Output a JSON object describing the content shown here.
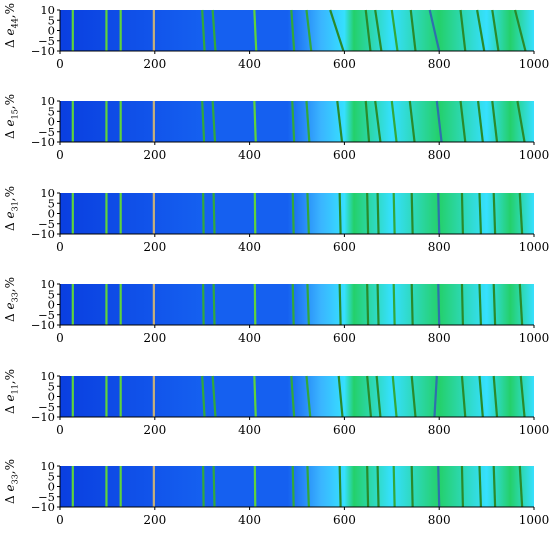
{
  "chart_data": [
    {
      "type": "heatmap",
      "ylabel_prefix": "Δ",
      "ylabel_symbol": "e",
      "ylabel_sub": "44",
      "ylabel_unit": ",%",
      "xlim": [
        0,
        1000
      ],
      "ylim": [
        -10,
        10
      ],
      "xticks": [
        "0",
        "200",
        "400",
        "600",
        "800",
        "1000"
      ],
      "yticks": [
        "10",
        "5",
        "0",
        "-5",
        "-10"
      ],
      "lines": [
        {
          "x_top": 27,
          "x_bottom": 27,
          "color": "#5fd33a"
        },
        {
          "x_top": 98,
          "x_bottom": 98,
          "color": "#5fd33a"
        },
        {
          "x_top": 128,
          "x_bottom": 128,
          "color": "#5fd33a"
        },
        {
          "x_top": 198,
          "x_bottom": 198,
          "color": "#c7b07a"
        },
        {
          "x_top": 300,
          "x_bottom": 305,
          "color": "#32a83a"
        },
        {
          "x_top": 322,
          "x_bottom": 328,
          "color": "#32a83a"
        },
        {
          "x_top": 410,
          "x_bottom": 414,
          "color": "#5fd33a"
        },
        {
          "x_top": 488,
          "x_bottom": 494,
          "color": "#32a83a"
        },
        {
          "x_top": 520,
          "x_bottom": 530,
          "color": "#32a83a"
        },
        {
          "x_top": 570,
          "x_bottom": 598,
          "color": "#2a8a2a"
        },
        {
          "x_top": 645,
          "x_bottom": 655,
          "color": "#2a8a2a"
        },
        {
          "x_top": 665,
          "x_bottom": 678,
          "color": "#2a8a2a"
        },
        {
          "x_top": 700,
          "x_bottom": 712,
          "color": "#32a83a"
        },
        {
          "x_top": 740,
          "x_bottom": 750,
          "color": "#2a8a2a"
        },
        {
          "x_top": 780,
          "x_bottom": 800,
          "color": "#2f6fae"
        },
        {
          "x_top": 845,
          "x_bottom": 855,
          "color": "#2a8a2a"
        },
        {
          "x_top": 880,
          "x_bottom": 895,
          "color": "#2a8a2a"
        },
        {
          "x_top": 912,
          "x_bottom": 925,
          "color": "#2a8a2a"
        },
        {
          "x_top": 960,
          "x_bottom": 982,
          "color": "#2a8a2a"
        }
      ]
    },
    {
      "type": "heatmap",
      "ylabel_prefix": "Δ",
      "ylabel_symbol": "e",
      "ylabel_sub": "15",
      "ylabel_unit": ",%",
      "xlim": [
        0,
        1000
      ],
      "ylim": [
        -10,
        10
      ],
      "xticks": [
        "0",
        "200",
        "400",
        "600",
        "800",
        "1000"
      ],
      "yticks": [
        "10",
        "5",
        "0",
        "-5",
        "-10"
      ],
      "lines": [
        {
          "x_top": 27,
          "x_bottom": 27,
          "color": "#5fd33a"
        },
        {
          "x_top": 98,
          "x_bottom": 98,
          "color": "#5fd33a"
        },
        {
          "x_top": 128,
          "x_bottom": 128,
          "color": "#5fd33a"
        },
        {
          "x_top": 198,
          "x_bottom": 198,
          "color": "#c7b07a"
        },
        {
          "x_top": 300,
          "x_bottom": 304,
          "color": "#32a83a"
        },
        {
          "x_top": 322,
          "x_bottom": 327,
          "color": "#32a83a"
        },
        {
          "x_top": 410,
          "x_bottom": 413,
          "color": "#5fd33a"
        },
        {
          "x_top": 490,
          "x_bottom": 494,
          "color": "#32a83a"
        },
        {
          "x_top": 520,
          "x_bottom": 526,
          "color": "#32a83a"
        },
        {
          "x_top": 585,
          "x_bottom": 595,
          "color": "#2a8a2a"
        },
        {
          "x_top": 645,
          "x_bottom": 652,
          "color": "#2a8a2a"
        },
        {
          "x_top": 665,
          "x_bottom": 676,
          "color": "#2a8a2a"
        },
        {
          "x_top": 700,
          "x_bottom": 710,
          "color": "#32a83a"
        },
        {
          "x_top": 738,
          "x_bottom": 748,
          "color": "#2a8a2a"
        },
        {
          "x_top": 795,
          "x_bottom": 805,
          "color": "#2f6fae"
        },
        {
          "x_top": 845,
          "x_bottom": 855,
          "color": "#2a8a2a"
        },
        {
          "x_top": 882,
          "x_bottom": 892,
          "color": "#2a8a2a"
        },
        {
          "x_top": 912,
          "x_bottom": 922,
          "color": "#2a8a2a"
        },
        {
          "x_top": 965,
          "x_bottom": 980,
          "color": "#2a8a2a"
        }
      ]
    },
    {
      "type": "heatmap",
      "ylabel_prefix": "Δ",
      "ylabel_symbol": "e",
      "ylabel_sub": "31",
      "ylabel_unit": ",%",
      "xlim": [
        0,
        1000
      ],
      "ylim": [
        -10,
        10
      ],
      "xticks": [
        "0",
        "200",
        "400",
        "600",
        "800",
        "1000"
      ],
      "yticks": [
        "10",
        "5",
        "0",
        "-5",
        "-10"
      ],
      "lines": [
        {
          "x_top": 27,
          "x_bottom": 27,
          "color": "#5fd33a"
        },
        {
          "x_top": 98,
          "x_bottom": 98,
          "color": "#5fd33a"
        },
        {
          "x_top": 128,
          "x_bottom": 128,
          "color": "#5fd33a"
        },
        {
          "x_top": 198,
          "x_bottom": 198,
          "color": "#c7b07a"
        },
        {
          "x_top": 302,
          "x_bottom": 303,
          "color": "#32a83a"
        },
        {
          "x_top": 324,
          "x_bottom": 326,
          "color": "#32a83a"
        },
        {
          "x_top": 411,
          "x_bottom": 412,
          "color": "#5fd33a"
        },
        {
          "x_top": 491,
          "x_bottom": 493,
          "color": "#32a83a"
        },
        {
          "x_top": 522,
          "x_bottom": 525,
          "color": "#32a83a"
        },
        {
          "x_top": 590,
          "x_bottom": 592,
          "color": "#2a8a2a"
        },
        {
          "x_top": 648,
          "x_bottom": 650,
          "color": "#2a8a2a"
        },
        {
          "x_top": 670,
          "x_bottom": 672,
          "color": "#2a8a2a"
        },
        {
          "x_top": 704,
          "x_bottom": 706,
          "color": "#32a83a"
        },
        {
          "x_top": 742,
          "x_bottom": 744,
          "color": "#2a8a2a"
        },
        {
          "x_top": 798,
          "x_bottom": 800,
          "color": "#2f6fae"
        },
        {
          "x_top": 848,
          "x_bottom": 850,
          "color": "#2a8a2a"
        },
        {
          "x_top": 885,
          "x_bottom": 888,
          "color": "#2a8a2a"
        },
        {
          "x_top": 915,
          "x_bottom": 918,
          "color": "#2a8a2a"
        },
        {
          "x_top": 970,
          "x_bottom": 975,
          "color": "#2a8a2a"
        }
      ]
    },
    {
      "type": "heatmap",
      "ylabel_prefix": "Δ",
      "ylabel_symbol": "e",
      "ylabel_sub": "33",
      "ylabel_unit": ",%",
      "xlim": [
        0,
        1000
      ],
      "ylim": [
        -10,
        10
      ],
      "xticks": [
        "0",
        "200",
        "400",
        "600",
        "800",
        "1000"
      ],
      "yticks": [
        "10",
        "5",
        "0",
        "-5",
        "-10"
      ],
      "lines": [
        {
          "x_top": 27,
          "x_bottom": 27,
          "color": "#5fd33a"
        },
        {
          "x_top": 98,
          "x_bottom": 98,
          "color": "#5fd33a"
        },
        {
          "x_top": 128,
          "x_bottom": 128,
          "color": "#5fd33a"
        },
        {
          "x_top": 198,
          "x_bottom": 198,
          "color": "#c7b07a"
        },
        {
          "x_top": 302,
          "x_bottom": 303,
          "color": "#32a83a"
        },
        {
          "x_top": 324,
          "x_bottom": 326,
          "color": "#32a83a"
        },
        {
          "x_top": 411,
          "x_bottom": 412,
          "color": "#5fd33a"
        },
        {
          "x_top": 491,
          "x_bottom": 493,
          "color": "#32a83a"
        },
        {
          "x_top": 522,
          "x_bottom": 525,
          "color": "#32a83a"
        },
        {
          "x_top": 590,
          "x_bottom": 592,
          "color": "#2a8a2a"
        },
        {
          "x_top": 648,
          "x_bottom": 650,
          "color": "#2a8a2a"
        },
        {
          "x_top": 670,
          "x_bottom": 672,
          "color": "#2a8a2a"
        },
        {
          "x_top": 704,
          "x_bottom": 706,
          "color": "#32a83a"
        },
        {
          "x_top": 742,
          "x_bottom": 744,
          "color": "#2a8a2a"
        },
        {
          "x_top": 798,
          "x_bottom": 800,
          "color": "#2f6fae"
        },
        {
          "x_top": 848,
          "x_bottom": 850,
          "color": "#2a8a2a"
        },
        {
          "x_top": 885,
          "x_bottom": 888,
          "color": "#2a8a2a"
        },
        {
          "x_top": 915,
          "x_bottom": 918,
          "color": "#2a8a2a"
        },
        {
          "x_top": 970,
          "x_bottom": 975,
          "color": "#2a8a2a"
        }
      ]
    },
    {
      "type": "heatmap",
      "ylabel_prefix": "Δ",
      "ylabel_symbol": "e",
      "ylabel_sub": "11",
      "ylabel_unit": ",%",
      "xlim": [
        0,
        1000
      ],
      "ylim": [
        -10,
        10
      ],
      "xticks": [
        "0",
        "200",
        "400",
        "600",
        "800",
        "1000"
      ],
      "yticks": [
        "10",
        "5",
        "0",
        "-5",
        "-10"
      ],
      "lines": [
        {
          "x_top": 27,
          "x_bottom": 27,
          "color": "#5fd33a"
        },
        {
          "x_top": 98,
          "x_bottom": 98,
          "color": "#5fd33a"
        },
        {
          "x_top": 128,
          "x_bottom": 128,
          "color": "#5fd33a"
        },
        {
          "x_top": 198,
          "x_bottom": 198,
          "color": "#c7b07a"
        },
        {
          "x_top": 300,
          "x_bottom": 305,
          "color": "#32a83a"
        },
        {
          "x_top": 322,
          "x_bottom": 328,
          "color": "#32a83a"
        },
        {
          "x_top": 410,
          "x_bottom": 413,
          "color": "#5fd33a"
        },
        {
          "x_top": 488,
          "x_bottom": 494,
          "color": "#32a83a"
        },
        {
          "x_top": 520,
          "x_bottom": 528,
          "color": "#32a83a"
        },
        {
          "x_top": 588,
          "x_bottom": 596,
          "color": "#2a8a2a"
        },
        {
          "x_top": 648,
          "x_bottom": 656,
          "color": "#2a8a2a"
        },
        {
          "x_top": 668,
          "x_bottom": 676,
          "color": "#2a8a2a"
        },
        {
          "x_top": 702,
          "x_bottom": 710,
          "color": "#32a83a"
        },
        {
          "x_top": 742,
          "x_bottom": 750,
          "color": "#2a8a2a"
        },
        {
          "x_top": 795,
          "x_bottom": 790,
          "color": "#2f6fae"
        },
        {
          "x_top": 848,
          "x_bottom": 855,
          "color": "#2a8a2a"
        },
        {
          "x_top": 885,
          "x_bottom": 892,
          "color": "#2a8a2a"
        },
        {
          "x_top": 915,
          "x_bottom": 922,
          "color": "#2a8a2a"
        },
        {
          "x_top": 972,
          "x_bottom": 980,
          "color": "#2a8a2a"
        }
      ]
    },
    {
      "type": "heatmap",
      "ylabel_prefix": "Δ",
      "ylabel_symbol": "e",
      "ylabel_sub": "33",
      "ylabel_unit": ",%",
      "xlim": [
        0,
        1000
      ],
      "ylim": [
        -10,
        10
      ],
      "xticks": [
        "0",
        "200",
        "400",
        "600",
        "800",
        "1000"
      ],
      "yticks": [
        "10",
        "5",
        "0",
        "-5",
        "-10"
      ],
      "lines": [
        {
          "x_top": 27,
          "x_bottom": 27,
          "color": "#5fd33a"
        },
        {
          "x_top": 98,
          "x_bottom": 98,
          "color": "#5fd33a"
        },
        {
          "x_top": 128,
          "x_bottom": 128,
          "color": "#5fd33a"
        },
        {
          "x_top": 198,
          "x_bottom": 198,
          "color": "#c7b07a"
        },
        {
          "x_top": 302,
          "x_bottom": 303,
          "color": "#32a83a"
        },
        {
          "x_top": 324,
          "x_bottom": 326,
          "color": "#32a83a"
        },
        {
          "x_top": 411,
          "x_bottom": 412,
          "color": "#5fd33a"
        },
        {
          "x_top": 491,
          "x_bottom": 493,
          "color": "#32a83a"
        },
        {
          "x_top": 522,
          "x_bottom": 525,
          "color": "#32a83a"
        },
        {
          "x_top": 590,
          "x_bottom": 592,
          "color": "#2a8a2a"
        },
        {
          "x_top": 648,
          "x_bottom": 650,
          "color": "#2a8a2a"
        },
        {
          "x_top": 670,
          "x_bottom": 672,
          "color": "#2a8a2a"
        },
        {
          "x_top": 704,
          "x_bottom": 706,
          "color": "#32a83a"
        },
        {
          "x_top": 742,
          "x_bottom": 744,
          "color": "#2a8a2a"
        },
        {
          "x_top": 798,
          "x_bottom": 800,
          "color": "#2f6fae"
        },
        {
          "x_top": 848,
          "x_bottom": 850,
          "color": "#2a8a2a"
        },
        {
          "x_top": 885,
          "x_bottom": 888,
          "color": "#2a8a2a"
        },
        {
          "x_top": 915,
          "x_bottom": 918,
          "color": "#2a8a2a"
        },
        {
          "x_top": 970,
          "x_bottom": 975,
          "color": "#2a8a2a"
        }
      ]
    }
  ],
  "palette": {
    "deep_blue": "#0a3fe0",
    "blue": "#1560f0",
    "light_blue": "#3ab4ff",
    "cyan": "#36e0ff",
    "green": "#24d06a",
    "axis": "#000000",
    "background": "#ffffff"
  }
}
